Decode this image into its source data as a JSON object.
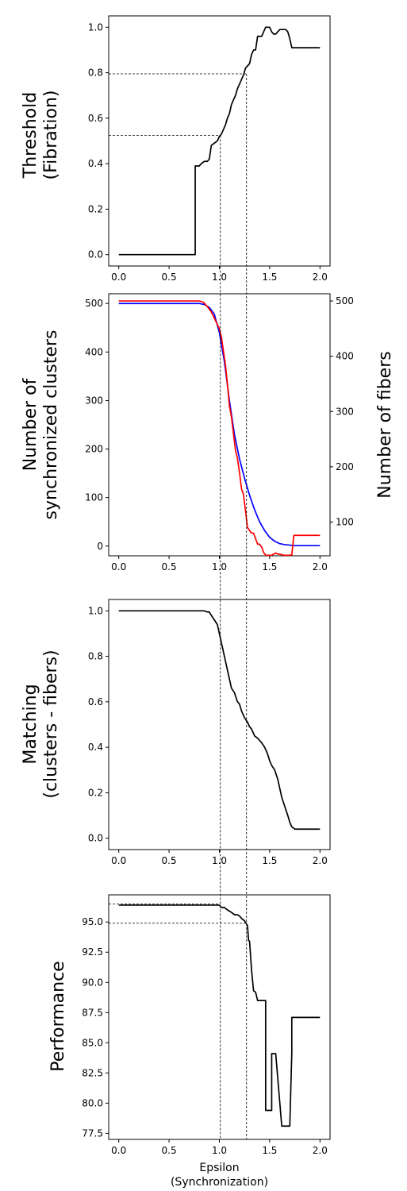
{
  "chart_data": [
    {
      "type": "line",
      "ylabel": [
        "Threshold",
        "(Fibration)"
      ],
      "xlim": [
        -0.1,
        2.1
      ],
      "ylim": [
        -0.05,
        1.05
      ],
      "xticks": [
        0.0,
        0.5,
        1.0,
        1.5,
        2.0
      ],
      "xtick_labels": [
        "0.0",
        "0.5",
        "1.0",
        "1.5",
        "2.0"
      ],
      "yticks": [
        0.0,
        0.2,
        0.4,
        0.6,
        0.8,
        1.0
      ],
      "ytick_labels": [
        "0.0",
        "0.2",
        "0.4",
        "0.6",
        "0.8",
        "1.0"
      ],
      "grid": false,
      "series": [
        {
          "color": "#000000",
          "x": [
            0.0,
            0.76,
            0.76,
            0.78,
            0.8,
            0.82,
            0.85,
            0.88,
            0.9,
            0.92,
            0.95,
            0.98,
            1.0,
            1.02,
            1.04,
            1.06,
            1.08,
            1.1,
            1.12,
            1.14,
            1.16,
            1.18,
            1.2,
            1.22,
            1.24,
            1.26,
            1.28,
            1.3,
            1.32,
            1.34,
            1.36,
            1.38,
            1.4,
            1.42,
            1.44,
            1.46,
            1.5,
            1.52,
            1.54,
            1.56,
            1.58,
            1.6,
            1.62,
            1.64,
            1.66,
            1.68,
            1.7,
            1.72,
            1.74,
            2.0
          ],
          "y": [
            0.0,
            0.0,
            0.39,
            0.39,
            0.39,
            0.4,
            0.41,
            0.41,
            0.42,
            0.48,
            0.49,
            0.5,
            0.52,
            0.53,
            0.55,
            0.57,
            0.6,
            0.62,
            0.66,
            0.68,
            0.7,
            0.73,
            0.75,
            0.77,
            0.79,
            0.82,
            0.83,
            0.84,
            0.88,
            0.9,
            0.9,
            0.96,
            0.96,
            0.96,
            0.98,
            1.0,
            1.0,
            0.98,
            0.97,
            0.97,
            0.98,
            0.99,
            0.99,
            0.99,
            0.99,
            0.98,
            0.95,
            0.91,
            0.91,
            0.91
          ]
        }
      ],
      "reference_lines": [
        {
          "x": 1.01,
          "y": 0.525
        },
        {
          "x": 1.27,
          "y": 0.795
        }
      ]
    },
    {
      "type": "line",
      "ylabel_left": [
        "Number of",
        "synchronized clusters"
      ],
      "ylabel_right": [
        "Number of fibers"
      ],
      "ylabel_left_color": "#0000ff",
      "ylabel_right_color": "#ff0000",
      "xlim": [
        -0.1,
        2.1
      ],
      "ylim": [
        -20,
        520
      ],
      "ylim_right": [
        39,
        513
      ],
      "xticks": [
        0.0,
        0.5,
        1.0,
        1.5,
        2.0
      ],
      "xtick_labels": [
        "0.0",
        "0.5",
        "1.0",
        "1.5",
        "2.0"
      ],
      "yticks": [
        0,
        100,
        200,
        300,
        400,
        500
      ],
      "ytick_labels": [
        "0",
        "100",
        "200",
        "300",
        "400",
        "500"
      ],
      "yticks_right": [
        100,
        200,
        300,
        400,
        500
      ],
      "ytick_labels_right": [
        "100",
        "200",
        "300",
        "400",
        "500"
      ],
      "grid": false,
      "series": [
        {
          "name": "clusters",
          "axis": "left",
          "color": "#0000ff",
          "x": [
            0.0,
            0.5,
            0.8,
            0.85,
            0.9,
            0.95,
            1.0,
            1.05,
            1.1,
            1.15,
            1.2,
            1.25,
            1.3,
            1.35,
            1.4,
            1.45,
            1.5,
            1.55,
            1.6,
            1.65,
            1.7,
            1.75,
            1.8,
            2.0
          ],
          "y": [
            500,
            500,
            500,
            498,
            492,
            478,
            440,
            380,
            300,
            230,
            180,
            140,
            105,
            75,
            50,
            32,
            18,
            10,
            5,
            3,
            2,
            1,
            1,
            1
          ]
        },
        {
          "name": "fibers",
          "axis": "right",
          "color": "#ff0000",
          "x": [
            0.0,
            0.8,
            0.84,
            0.88,
            0.92,
            0.96,
            1.0,
            1.02,
            1.04,
            1.06,
            1.08,
            1.1,
            1.12,
            1.14,
            1.16,
            1.18,
            1.2,
            1.22,
            1.24,
            1.26,
            1.28,
            1.3,
            1.32,
            1.34,
            1.36,
            1.38,
            1.4,
            1.42,
            1.44,
            1.46,
            1.48,
            1.5,
            1.52,
            1.54,
            1.56,
            1.58,
            1.6,
            1.62,
            1.64,
            1.66,
            1.68,
            1.7,
            1.72,
            1.74,
            1.76,
            2.0
          ],
          "y": [
            500,
            500,
            498,
            490,
            480,
            465,
            450,
            435,
            410,
            385,
            350,
            310,
            290,
            260,
            230,
            215,
            190,
            160,
            150,
            120,
            90,
            85,
            80,
            80,
            70,
            60,
            60,
            55,
            45,
            40,
            40,
            40,
            40,
            42,
            44,
            42,
            42,
            41,
            40,
            40,
            40,
            40,
            41,
            76,
            76,
            76
          ]
        }
      ],
      "reference_lines": [
        {
          "x": 1.01
        },
        {
          "x": 1.27
        }
      ]
    },
    {
      "type": "line",
      "ylabel": [
        "Matching",
        "(clusters - fibers)"
      ],
      "xlim": [
        -0.1,
        2.1
      ],
      "ylim": [
        -0.05,
        1.05
      ],
      "xticks": [
        0.0,
        0.5,
        1.0,
        1.5,
        2.0
      ],
      "xtick_labels": [
        "0.0",
        "0.5",
        "1.0",
        "1.5",
        "2.0"
      ],
      "yticks": [
        0.0,
        0.2,
        0.4,
        0.6,
        0.8,
        1.0
      ],
      "ytick_labels": [
        "0.0",
        "0.2",
        "0.4",
        "0.6",
        "0.8",
        "1.0"
      ],
      "grid": false,
      "series": [
        {
          "color": "#000000",
          "x": [
            0.0,
            0.5,
            0.85,
            0.88,
            0.9,
            0.92,
            0.95,
            0.98,
            1.0,
            1.02,
            1.05,
            1.08,
            1.1,
            1.12,
            1.15,
            1.18,
            1.2,
            1.22,
            1.25,
            1.28,
            1.3,
            1.32,
            1.35,
            1.38,
            1.4,
            1.42,
            1.45,
            1.48,
            1.5,
            1.52,
            1.55,
            1.58,
            1.6,
            1.62,
            1.65,
            1.68,
            1.7,
            1.72,
            1.75,
            2.0
          ],
          "y": [
            1.0,
            1.0,
            1.0,
            0.995,
            0.995,
            0.98,
            0.96,
            0.94,
            0.9,
            0.86,
            0.8,
            0.74,
            0.7,
            0.66,
            0.64,
            0.6,
            0.59,
            0.56,
            0.53,
            0.51,
            0.49,
            0.48,
            0.45,
            0.44,
            0.43,
            0.42,
            0.4,
            0.37,
            0.34,
            0.32,
            0.3,
            0.26,
            0.22,
            0.18,
            0.14,
            0.1,
            0.07,
            0.05,
            0.04,
            0.04
          ]
        }
      ],
      "reference_lines": [
        {
          "x": 1.01
        },
        {
          "x": 1.27
        }
      ]
    },
    {
      "type": "line",
      "ylabel": [
        "Performance"
      ],
      "xlabel": [
        "Epsilon",
        "(Synchronization)"
      ],
      "xlim": [
        -0.1,
        2.1
      ],
      "ylim": [
        77.0,
        97.25
      ],
      "xticks": [
        0.0,
        0.5,
        1.0,
        1.5,
        2.0
      ],
      "xtick_labels": [
        "0.0",
        "0.5",
        "1.0",
        "1.5",
        "2.0"
      ],
      "yticks": [
        77.5,
        80.0,
        82.5,
        85.0,
        87.5,
        90.0,
        92.5,
        95.0
      ],
      "ytick_labels": [
        "77.5",
        "80.0",
        "82.5",
        "85.0",
        "87.5",
        "90.0",
        "92.5",
        "95.0"
      ],
      "grid": false,
      "series": [
        {
          "color": "#000000",
          "x": [
            0.0,
            0.95,
            1.0,
            1.02,
            1.05,
            1.08,
            1.1,
            1.12,
            1.15,
            1.18,
            1.2,
            1.22,
            1.25,
            1.28,
            1.29,
            1.3,
            1.32,
            1.34,
            1.36,
            1.38,
            1.4,
            1.42,
            1.44,
            1.46,
            1.46,
            1.52,
            1.52,
            1.56,
            1.56,
            1.62,
            1.62,
            1.7,
            1.72,
            1.72,
            1.76,
            2.0
          ],
          "y": [
            96.4,
            96.4,
            96.4,
            96.2,
            96.2,
            96.0,
            95.9,
            95.8,
            95.6,
            95.6,
            95.5,
            95.3,
            95.1,
            94.7,
            93.5,
            93.4,
            91.0,
            89.3,
            89.2,
            88.5,
            88.5,
            88.5,
            88.5,
            88.5,
            79.4,
            79.4,
            84.1,
            84.1,
            84.1,
            78.1,
            78.1,
            78.1,
            84.2,
            87.1,
            87.1,
            87.1
          ]
        }
      ],
      "reference_lines": [
        {
          "x": 1.01,
          "y": 96.5
        },
        {
          "x": 1.27,
          "y": 94.9
        }
      ]
    }
  ]
}
